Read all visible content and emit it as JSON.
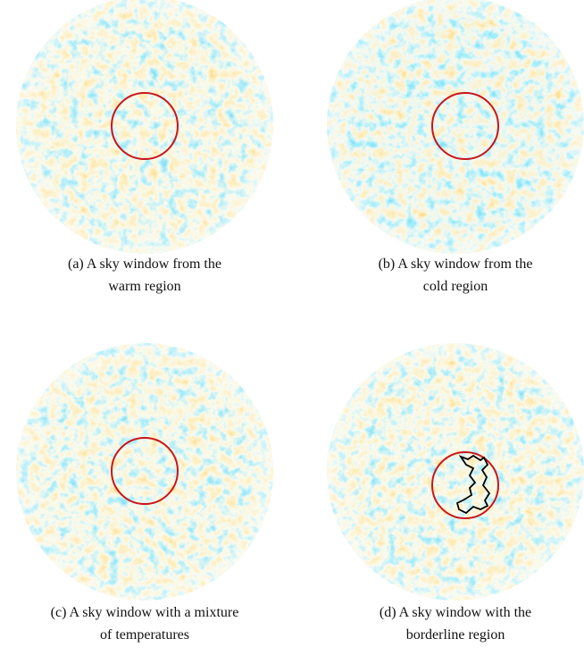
{
  "figure": {
    "panels": [
      {
        "caption": [
          "(a) A sky window from the",
          "warm region"
        ]
      },
      {
        "caption": [
          "(b) A sky window from the",
          "cold region"
        ]
      },
      {
        "caption": [
          "(c) A sky window with a mixture",
          "of temperatures"
        ]
      },
      {
        "caption": [
          "(d) A sky window with the",
          "borderline region"
        ]
      }
    ]
  }
}
